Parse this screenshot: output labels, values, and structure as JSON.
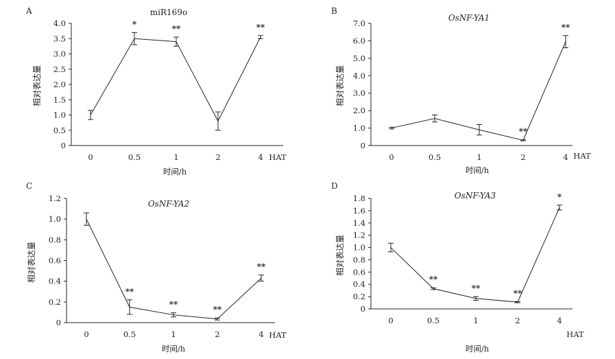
{
  "chart_data": [
    {
      "type": "line",
      "panel_label": "A",
      "title": "miR169o",
      "title_italic": false,
      "ylabel": "相对表达量",
      "xlabel": "时间/h",
      "x_unit_label": "HAT",
      "categories": [
        "0",
        "0.5",
        "1",
        "2",
        "4"
      ],
      "y_ticks": [
        "0",
        "0.5",
        "1.0",
        "1.5",
        "2.0",
        "2.5",
        "3.0",
        "3.5",
        "4.0"
      ],
      "ylim": [
        0,
        4.0
      ],
      "values": [
        1.0,
        3.5,
        3.4,
        0.8,
        3.55
      ],
      "errors": [
        0.15,
        0.2,
        0.15,
        0.3,
        0.05
      ],
      "significance": [
        "",
        "*",
        "**",
        "",
        "**"
      ],
      "grid": false,
      "legend": "none"
    },
    {
      "type": "line",
      "panel_label": "B",
      "title": "OsNF-YA1",
      "title_italic": true,
      "ylabel": "相对表达量",
      "xlabel": "时间/h",
      "x_unit_label": "HAT",
      "categories": [
        "0",
        "0.5",
        "1",
        "2",
        "4"
      ],
      "y_ticks": [
        "0",
        "1.0",
        "2.0",
        "3.0",
        "4.0",
        "5.0",
        "6.0",
        "7.0"
      ],
      "ylim": [
        0,
        7.0
      ],
      "values": [
        1.0,
        1.55,
        0.9,
        0.3,
        5.95
      ],
      "errors": [
        0.05,
        0.2,
        0.3,
        0.03,
        0.35
      ],
      "significance": [
        "",
        "",
        "",
        "**",
        "**"
      ],
      "grid": false,
      "legend": "none"
    },
    {
      "type": "line",
      "panel_label": "C",
      "title": "OsNF-YA2",
      "title_italic": true,
      "ylabel": "相对表达量",
      "xlabel": "时间/h",
      "x_unit_label": "HAT",
      "categories": [
        "0",
        "0.5",
        "1",
        "2",
        "4"
      ],
      "y_ticks": [
        "0",
        "0.2",
        "0.4",
        "0.6",
        "0.8",
        "1.0",
        "1.2"
      ],
      "ylim": [
        0,
        1.2
      ],
      "values": [
        1.0,
        0.15,
        0.075,
        0.035,
        0.43
      ],
      "errors": [
        0.06,
        0.07,
        0.02,
        0.01,
        0.03
      ],
      "significance": [
        "",
        "**",
        "**",
        "**",
        "**"
      ],
      "grid": false,
      "legend": "none"
    },
    {
      "type": "line",
      "panel_label": "D",
      "title": "OsNF-YA3",
      "title_italic": true,
      "ylabel": "相对表达量",
      "xlabel": "时间/h",
      "x_unit_label": "HAT",
      "categories": [
        "0",
        "0.5",
        "1",
        "2",
        "4"
      ],
      "y_ticks": [
        "0",
        "0.2",
        "0.4",
        "0.6",
        "0.8",
        "1.0",
        "1.2",
        "1.4",
        "1.6",
        "1.8"
      ],
      "ylim": [
        0,
        1.8
      ],
      "values": [
        1.0,
        0.33,
        0.17,
        0.11,
        1.65
      ],
      "errors": [
        0.07,
        0.015,
        0.03,
        0.01,
        0.04
      ],
      "significance": [
        "",
        "**",
        "**",
        "**",
        "*"
      ],
      "grid": false,
      "legend": "none"
    }
  ]
}
